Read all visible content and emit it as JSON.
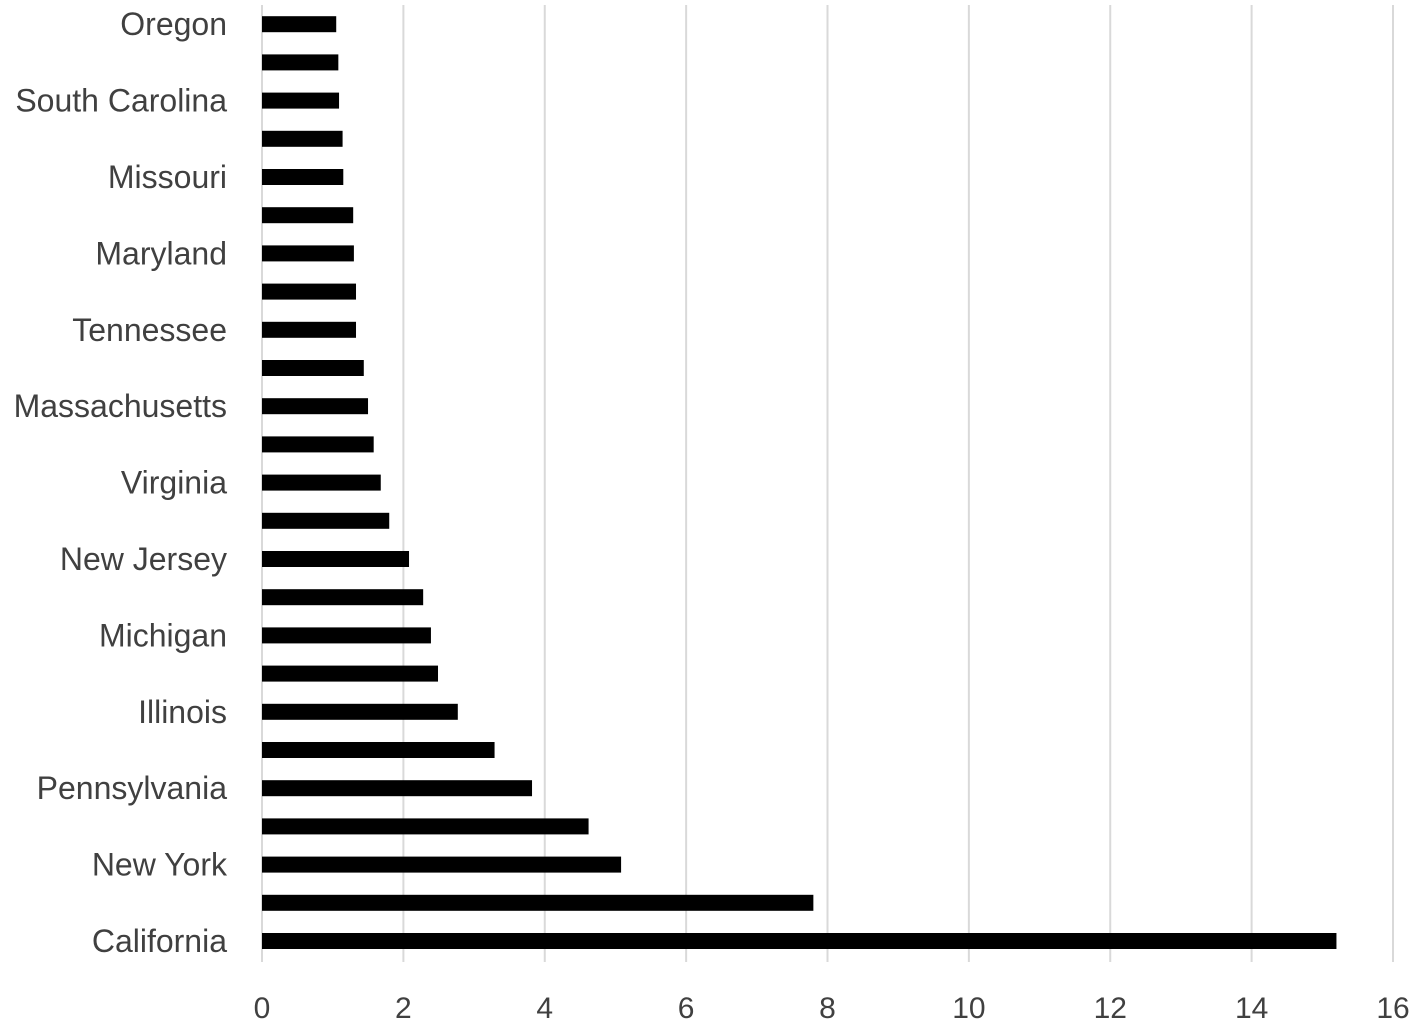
{
  "chart_data": {
    "type": "bar",
    "orientation": "horizontal",
    "categories": [
      "California",
      "",
      "New York",
      "",
      "Pennsylvania",
      "",
      "Illinois",
      "",
      "Michigan",
      "",
      "New Jersey",
      "",
      "Virginia",
      "",
      "Massachusetts",
      "",
      "Tennessee",
      "",
      "Maryland",
      "",
      "Missouri",
      "",
      "South Carolina",
      "",
      "Oregon"
    ],
    "values": [
      15.2,
      7.8,
      5.08,
      4.62,
      3.82,
      3.29,
      2.77,
      2.49,
      2.39,
      2.28,
      2.08,
      1.8,
      1.68,
      1.58,
      1.5,
      1.44,
      1.33,
      1.33,
      1.3,
      1.29,
      1.15,
      1.14,
      1.09,
      1.08,
      1.05
    ],
    "xlim": [
      0,
      16
    ],
    "xticks": [
      0,
      2,
      4,
      6,
      8,
      10,
      12,
      14,
      16
    ],
    "title": "",
    "xlabel": "",
    "ylabel": "",
    "grid": "vertical",
    "legend": "none",
    "bar_color": "#000000",
    "grid_color": "#d9d9d9"
  }
}
